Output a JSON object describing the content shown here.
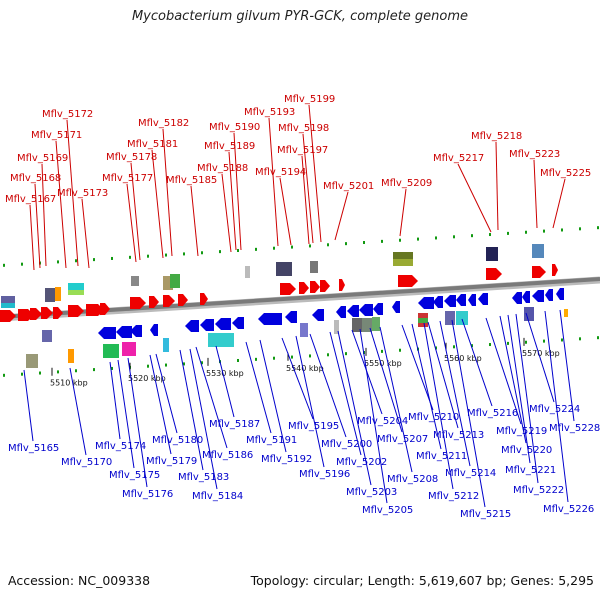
{
  "title": "Mycobacterium gilvum PYR-GCK, complete genome",
  "footer": {
    "accession": "Accession: NC_009338",
    "summary": "Topology: circular; Length: 5,619,607 bp; Genes: 5,295"
  },
  "colors": {
    "forward_label": "#cc0000",
    "reverse_label": "#0000cc",
    "backbone": "#888888",
    "tick": "#119911",
    "forward_arrow": "#ee0000",
    "reverse_arrow": "#0000dd"
  },
  "scale": {
    "ticks": [
      {
        "label": "5510 kbp",
        "kbp": 5510
      },
      {
        "label": "5520 kbp",
        "kbp": 5520
      },
      {
        "label": "5530 kbp",
        "kbp": 5530
      },
      {
        "label": "5540 kbp",
        "kbp": 5540
      },
      {
        "label": "5550 kbp",
        "kbp": 5550
      },
      {
        "label": "5560 kbp",
        "kbp": 5560
      },
      {
        "label": "5570 kbp",
        "kbp": 5570
      }
    ]
  },
  "forward_genes": [
    "Mflv_5167",
    "Mflv_5168",
    "Mflv_5169",
    "Mflv_5171",
    "Mflv_5172",
    "Mflv_5173",
    "Mflv_5177",
    "Mflv_5178",
    "Mflv_5181",
    "Mflv_5182",
    "Mflv_5185",
    "Mflv_5188",
    "Mflv_5189",
    "Mflv_5190",
    "Mflv_5193",
    "Mflv_5194",
    "Mflv_5197",
    "Mflv_5198",
    "Mflv_5199",
    "Mflv_5201",
    "Mflv_5209",
    "Mflv_5217",
    "Mflv_5218",
    "Mflv_5223",
    "Mflv_5225"
  ],
  "reverse_genes": [
    "Mflv_5165",
    "Mflv_5170",
    "Mflv_5174",
    "Mflv_5175",
    "Mflv_5176",
    "Mflv_5179",
    "Mflv_5180",
    "Mflv_5183",
    "Mflv_5184",
    "Mflv_5186",
    "Mflv_5187",
    "Mflv_5191",
    "Mflv_5192",
    "Mflv_5195",
    "Mflv_5196",
    "Mflv_5200",
    "Mflv_5202",
    "Mflv_5203",
    "Mflv_5204",
    "Mflv_5205",
    "Mflv_5207",
    "Mflv_5208",
    "Mflv_5210",
    "Mflv_5211",
    "Mflv_5212",
    "Mflv_5213",
    "Mflv_5214",
    "Mflv_5215",
    "Mflv_5216",
    "Mflv_5219",
    "Mflv_5220",
    "Mflv_5221",
    "Mflv_5222",
    "Mflv_5224",
    "Mflv_5226",
    "Mflv_5228"
  ]
}
